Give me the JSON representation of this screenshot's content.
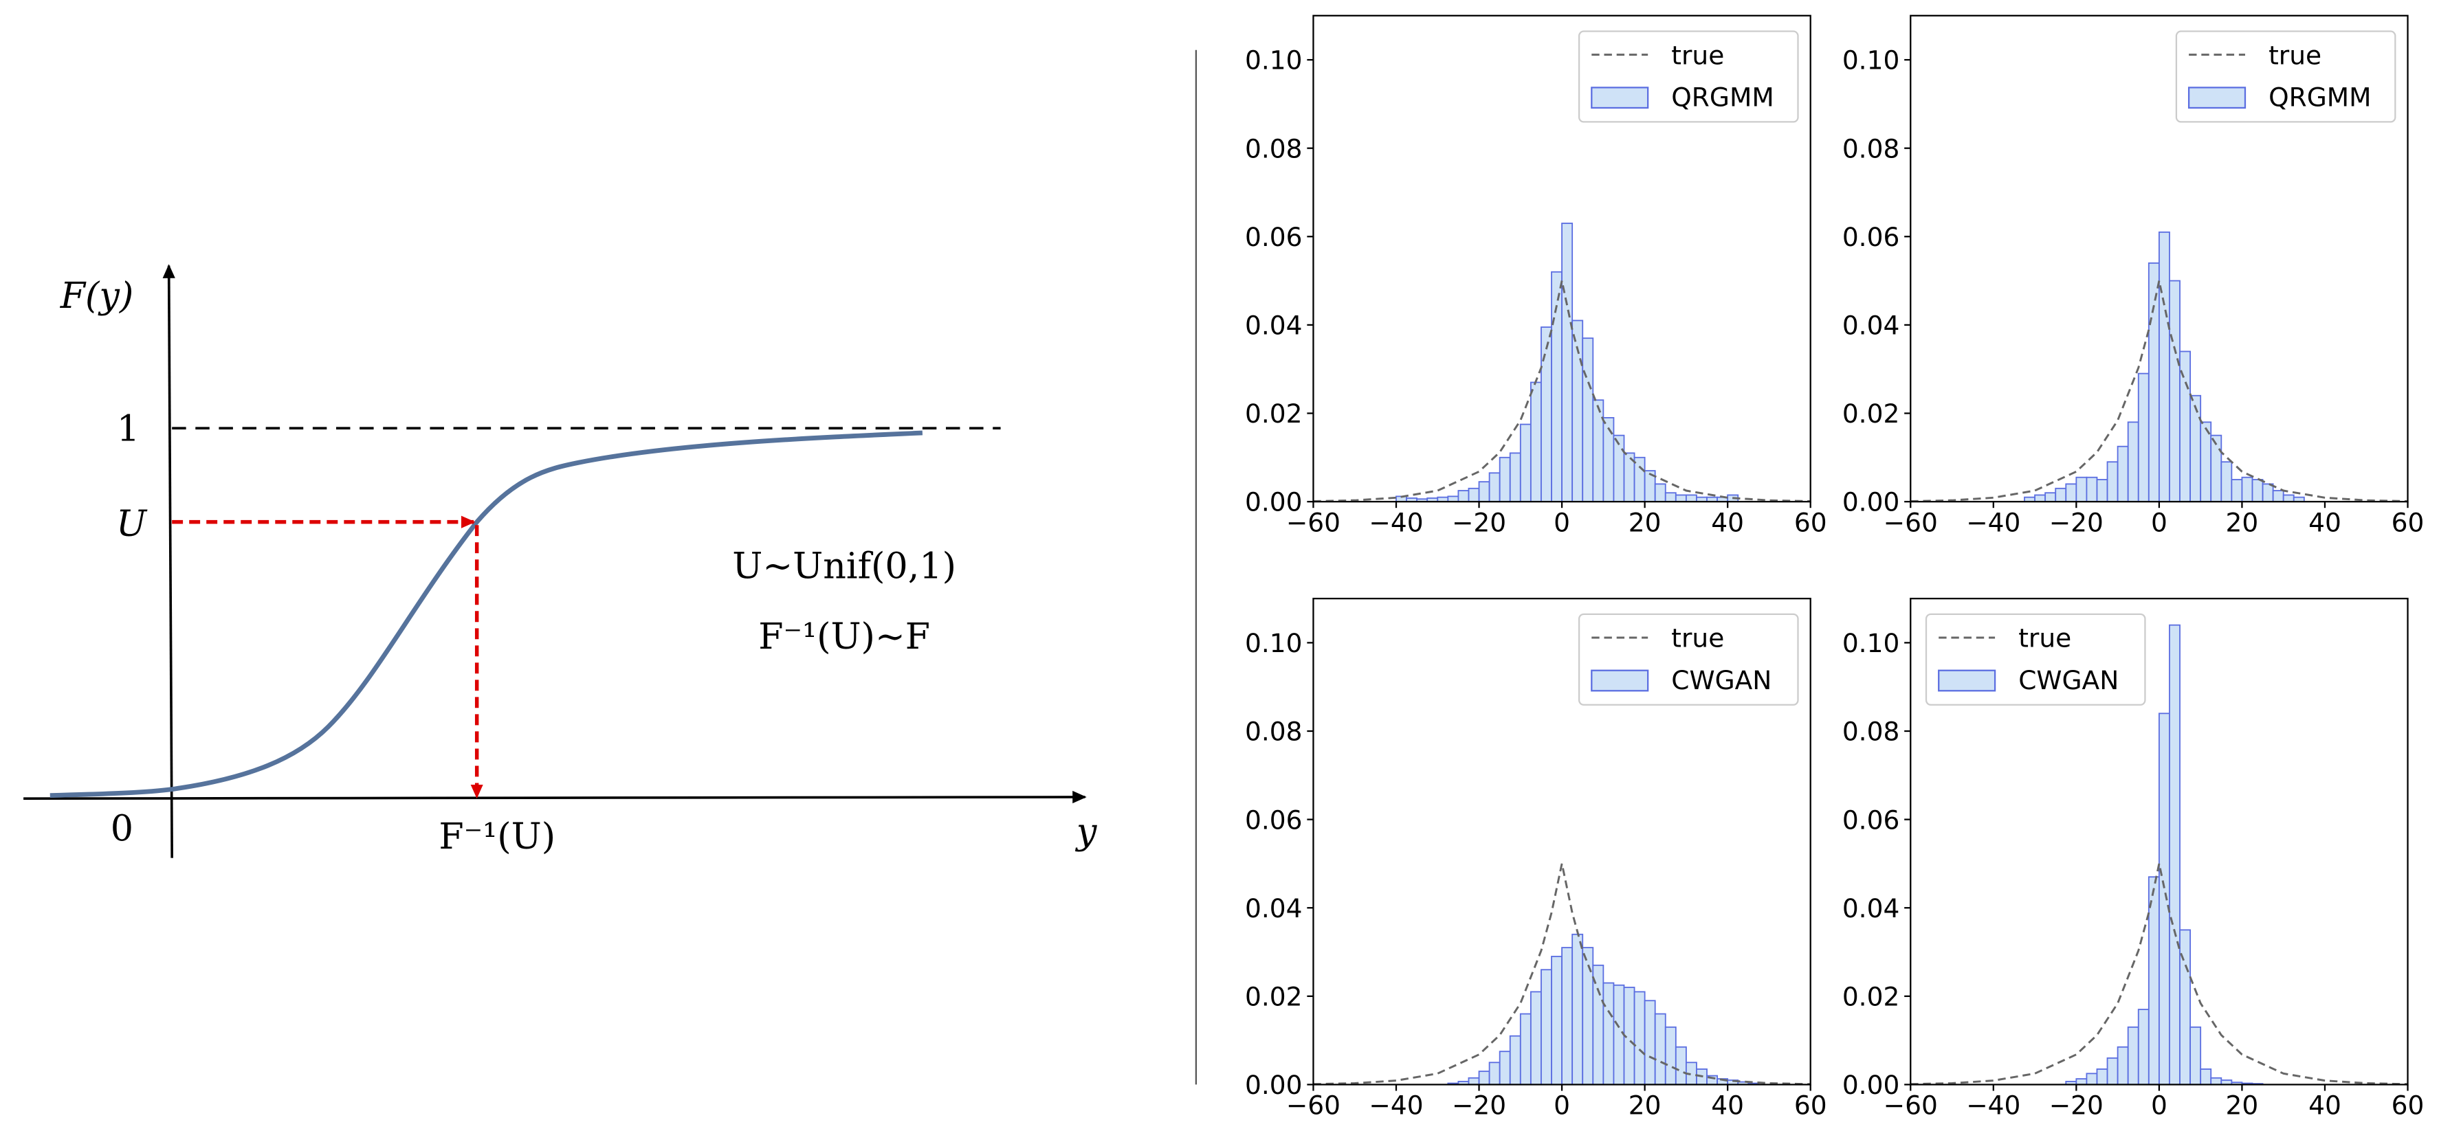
{
  "diagram": {
    "f_label": "F(y)",
    "one_label": "1",
    "u_label": "U",
    "zero_label": "0",
    "inverse_label": "F⁻¹(U)",
    "y_label": "y",
    "note_1": "U~Unif(0,1)",
    "note_2": "F⁻¹(U)~F"
  },
  "chart_data": [
    {
      "type": "histogram",
      "legend": "upper right",
      "xlim": [
        -60,
        60
      ],
      "ylim": [
        0,
        0.11
      ],
      "xticks": [
        {
          "value": -60,
          "label": "−60"
        },
        {
          "value": -40,
          "label": "−40"
        },
        {
          "value": -20,
          "label": "−20"
        },
        0,
        20,
        40,
        60
      ],
      "yticks": [
        {
          "value": 0,
          "label": "0.00"
        },
        {
          "value": 0.02,
          "label": "0.02"
        },
        {
          "value": 0.04,
          "label": "0.04"
        },
        {
          "value": 0.06,
          "label": "0.06"
        },
        {
          "value": 0.08,
          "label": "0.08"
        },
        {
          "value": 0.1,
          "label": "0.10"
        }
      ],
      "bins": [
        -40,
        -37.5,
        -35,
        -32.5,
        -30,
        -27.5,
        -25,
        -22.5,
        -20,
        -17.5,
        -15,
        -12.5,
        -10,
        -7.5,
        -5,
        -2.5,
        0,
        2.5,
        5,
        7.5,
        10,
        12.5,
        15,
        17.5,
        20,
        22.5,
        25,
        27.5,
        30,
        32.5,
        35,
        37.5,
        40,
        42.5
      ],
      "series": [
        {
          "name": "true",
          "type": "line",
          "color": "#666666",
          "x": [
            -60,
            -50,
            -40,
            -30,
            -20,
            -15,
            -10,
            -5,
            -2.5,
            0,
            2.5,
            5,
            10,
            15,
            20,
            30,
            40,
            50,
            60
          ],
          "values": [
            0.0001,
            0.0003,
            0.0009,
            0.0025,
            0.0068,
            0.0112,
            0.0184,
            0.0303,
            0.0389,
            0.05,
            0.0389,
            0.0303,
            0.0184,
            0.0112,
            0.0068,
            0.0025,
            0.0009,
            0.0003,
            0.0001
          ]
        },
        {
          "name": "QRGMM",
          "type": "histogram",
          "color": "#cfe2f7",
          "edgecolor": "#5b6ee1",
          "values": [
            0.0012,
            0.0008,
            0.0006,
            0.0008,
            0.001,
            0.0012,
            0.0025,
            0.003,
            0.0045,
            0.0065,
            0.01,
            0.011,
            0.0175,
            0.027,
            0.0395,
            0.052,
            0.063,
            0.041,
            0.037,
            0.023,
            0.019,
            0.015,
            0.011,
            0.01,
            0.007,
            0.004,
            0.002,
            0.0015,
            0.0015,
            0.001,
            0.001,
            0.001,
            0.0015
          ]
        }
      ]
    },
    {
      "type": "histogram",
      "legend": "upper right",
      "xlim": [
        -60,
        60
      ],
      "ylim": [
        0,
        0.11
      ],
      "xticks": [
        {
          "value": -60,
          "label": "−60"
        },
        {
          "value": -40,
          "label": "−40"
        },
        {
          "value": -20,
          "label": "−20"
        },
        0,
        20,
        40,
        60
      ],
      "yticks": [
        {
          "value": 0,
          "label": "0.00"
        },
        {
          "value": 0.02,
          "label": "0.02"
        },
        {
          "value": 0.04,
          "label": "0.04"
        },
        {
          "value": 0.06,
          "label": "0.06"
        },
        {
          "value": 0.08,
          "label": "0.08"
        },
        {
          "value": 0.1,
          "label": "0.10"
        }
      ],
      "bins": [
        -32.5,
        -30,
        -27.5,
        -25,
        -22.5,
        -20,
        -17.5,
        -15,
        -12.5,
        -10,
        -7.5,
        -5,
        -2.5,
        0,
        2.5,
        5,
        7.5,
        10,
        12.5,
        15,
        17.5,
        20,
        22.5,
        25,
        27.5,
        30,
        32.5,
        35
      ],
      "series": [
        {
          "name": "true",
          "type": "line",
          "color": "#666666",
          "x": [
            -60,
            -50,
            -40,
            -30,
            -20,
            -15,
            -10,
            -5,
            -2.5,
            0,
            2.5,
            5,
            10,
            15,
            20,
            30,
            40,
            50,
            60
          ],
          "values": [
            0.0001,
            0.0003,
            0.0009,
            0.0025,
            0.0068,
            0.0112,
            0.0184,
            0.0303,
            0.0389,
            0.05,
            0.0389,
            0.0303,
            0.0184,
            0.0112,
            0.0068,
            0.0025,
            0.0009,
            0.0003,
            0.0001
          ]
        },
        {
          "name": "QRGMM",
          "type": "histogram",
          "color": "#cfe2f7",
          "edgecolor": "#5b6ee1",
          "values": [
            0.001,
            0.0015,
            0.002,
            0.003,
            0.004,
            0.0055,
            0.0055,
            0.005,
            0.009,
            0.0125,
            0.018,
            0.029,
            0.054,
            0.061,
            0.05,
            0.034,
            0.024,
            0.018,
            0.015,
            0.009,
            0.005,
            0.0055,
            0.005,
            0.004,
            0.0025,
            0.0015,
            0.001
          ]
        }
      ]
    },
    {
      "type": "histogram",
      "legend": "upper right",
      "xlim": [
        -60,
        60
      ],
      "ylim": [
        0,
        0.11
      ],
      "xticks": [
        {
          "value": -60,
          "label": "−60"
        },
        {
          "value": -40,
          "label": "−40"
        },
        {
          "value": -20,
          "label": "−20"
        },
        0,
        20,
        40,
        60
      ],
      "yticks": [
        {
          "value": 0,
          "label": "0.00"
        },
        {
          "value": 0.02,
          "label": "0.02"
        },
        {
          "value": 0.04,
          "label": "0.04"
        },
        {
          "value": 0.06,
          "label": "0.06"
        },
        {
          "value": 0.08,
          "label": "0.08"
        },
        {
          "value": 0.1,
          "label": "0.10"
        }
      ],
      "bins": [
        -27.5,
        -25,
        -22.5,
        -20,
        -17.5,
        -15,
        -12.5,
        -10,
        -7.5,
        -5,
        -2.5,
        0,
        2.5,
        5,
        7.5,
        10,
        12.5,
        15,
        17.5,
        20,
        22.5,
        25,
        27.5,
        30,
        32.5,
        35,
        37.5,
        40,
        42.5,
        45,
        47.5
      ],
      "series": [
        {
          "name": "true",
          "type": "line",
          "color": "#666666",
          "x": [
            -60,
            -50,
            -40,
            -30,
            -20,
            -15,
            -10,
            -5,
            -2.5,
            0,
            2.5,
            5,
            10,
            15,
            20,
            30,
            40,
            50,
            60
          ],
          "values": [
            0.0001,
            0.0003,
            0.0009,
            0.0025,
            0.0068,
            0.0112,
            0.0184,
            0.0303,
            0.0389,
            0.05,
            0.0389,
            0.0303,
            0.0184,
            0.0112,
            0.0068,
            0.0025,
            0.0009,
            0.0003,
            0.0001
          ]
        },
        {
          "name": "CWGAN",
          "type": "histogram",
          "color": "#cfe2f7",
          "edgecolor": "#5b6ee1",
          "values": [
            0.0003,
            0.0007,
            0.0015,
            0.003,
            0.005,
            0.0075,
            0.011,
            0.016,
            0.021,
            0.026,
            0.029,
            0.031,
            0.034,
            0.031,
            0.027,
            0.023,
            0.0225,
            0.022,
            0.021,
            0.019,
            0.016,
            0.013,
            0.0085,
            0.005,
            0.0035,
            0.002,
            0.0013,
            0.001,
            0.0006,
            0.0003
          ]
        }
      ]
    },
    {
      "type": "histogram",
      "legend": "upper left",
      "xlim": [
        -60,
        60
      ],
      "ylim": [
        0,
        0.11
      ],
      "xticks": [
        {
          "value": -60,
          "label": "−60"
        },
        {
          "value": -40,
          "label": "−40"
        },
        {
          "value": -20,
          "label": "−20"
        },
        0,
        20,
        40,
        60
      ],
      "yticks": [
        {
          "value": 0,
          "label": "0.00"
        },
        {
          "value": 0.02,
          "label": "0.02"
        },
        {
          "value": 0.04,
          "label": "0.04"
        },
        {
          "value": 0.06,
          "label": "0.06"
        },
        {
          "value": 0.08,
          "label": "0.08"
        },
        {
          "value": 0.1,
          "label": "0.10"
        }
      ],
      "bins": [
        -22.5,
        -20,
        -17.5,
        -15,
        -12.5,
        -10,
        -7.5,
        -5,
        -2.5,
        0,
        2.5,
        5,
        7.5,
        10,
        12.5,
        15,
        17.5,
        20,
        22.5,
        25
      ],
      "series": [
        {
          "name": "true",
          "type": "line",
          "color": "#666666",
          "x": [
            -60,
            -50,
            -40,
            -30,
            -20,
            -15,
            -10,
            -5,
            -2.5,
            0,
            2.5,
            5,
            10,
            15,
            20,
            30,
            40,
            50,
            60
          ],
          "values": [
            0.0001,
            0.0003,
            0.0009,
            0.0025,
            0.0068,
            0.0112,
            0.0184,
            0.0303,
            0.0389,
            0.05,
            0.0389,
            0.0303,
            0.0184,
            0.0112,
            0.0068,
            0.0025,
            0.0009,
            0.0003,
            0.0001
          ]
        },
        {
          "name": "CWGAN",
          "type": "histogram",
          "color": "#cfe2f7",
          "edgecolor": "#5b6ee1",
          "values": [
            0.0007,
            0.0013,
            0.0025,
            0.0035,
            0.006,
            0.0085,
            0.013,
            0.017,
            0.047,
            0.084,
            0.104,
            0.035,
            0.013,
            0.0035,
            0.0015,
            0.001,
            0.0005,
            0.0003,
            0.0002
          ]
        }
      ]
    }
  ]
}
